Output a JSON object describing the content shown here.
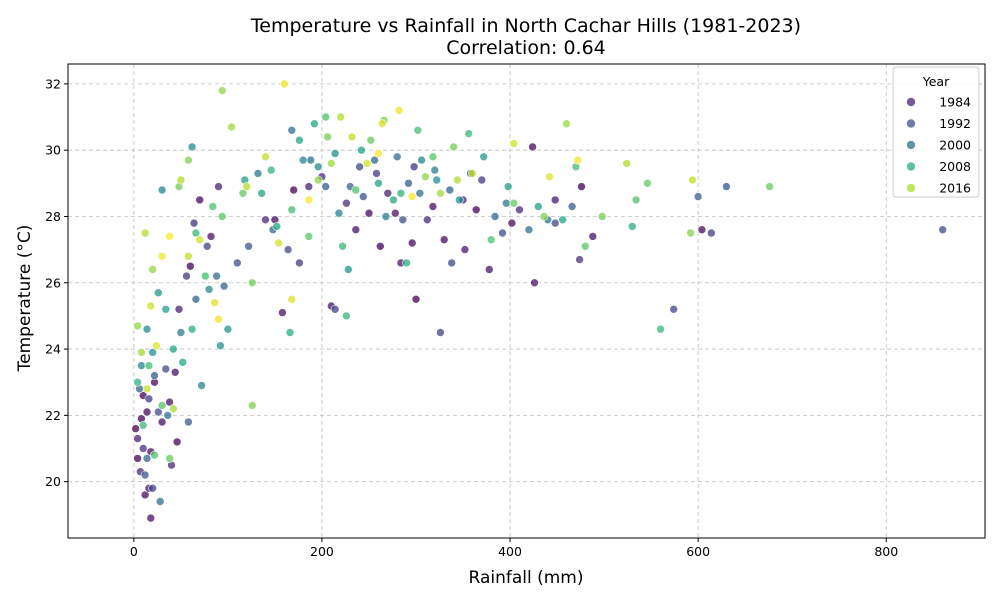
{
  "chart_data": {
    "type": "scatter",
    "title": "Temperature vs Rainfall in North Cachar Hills (1981-2023)",
    "subtitle": "Correlation: 0.64",
    "xlabel": "Rainfall (mm)",
    "ylabel": "Temperature (°C)",
    "xlim": [
      -70,
      905
    ],
    "ylim": [
      18.3,
      32.6
    ],
    "xticks": [
      0,
      200,
      400,
      600,
      800
    ],
    "yticks": [
      20,
      22,
      24,
      26,
      28,
      30,
      32
    ],
    "grid": true,
    "legend": {
      "title": "Year",
      "position": "top-right",
      "entries": [
        {
          "label": "1984",
          "color": "#482475"
        },
        {
          "label": "1992",
          "color": "#3b528b"
        },
        {
          "label": "2000",
          "color": "#2c728e"
        },
        {
          "label": "2008",
          "color": "#27ad81"
        },
        {
          "label": "2016",
          "color": "#aadc32"
        }
      ]
    },
    "color_scale": {
      "years": [
        1981,
        2023
      ],
      "colormap": "viridis"
    },
    "points": [
      [
        2,
        21.6,
        1981
      ],
      [
        4,
        20.7,
        1981
      ],
      [
        8,
        21.9,
        1981
      ],
      [
        10,
        22.6,
        1981
      ],
      [
        14,
        22.1,
        1982
      ],
      [
        18,
        20.9,
        1982
      ],
      [
        22,
        23.0,
        1982
      ],
      [
        30,
        21.8,
        1983
      ],
      [
        38,
        22.4,
        1983
      ],
      [
        44,
        23.3,
        1983
      ],
      [
        60,
        26.5,
        1981
      ],
      [
        70,
        28.5,
        1982
      ],
      [
        82,
        27.4,
        1983
      ],
      [
        150,
        27.9,
        1982
      ],
      [
        170,
        28.8,
        1981
      ],
      [
        210,
        25.3,
        1984
      ],
      [
        236,
        27.6,
        1983
      ],
      [
        250,
        28.1,
        1982
      ],
      [
        262,
        27.1,
        1981
      ],
      [
        278,
        28.1,
        1983
      ],
      [
        284,
        26.6,
        1984
      ],
      [
        296,
        27.2,
        1982
      ],
      [
        300,
        25.5,
        1981
      ],
      [
        318,
        28.3,
        1983
      ],
      [
        330,
        27.3,
        1982
      ],
      [
        352,
        27.0,
        1984
      ],
      [
        364,
        28.2,
        1981
      ],
      [
        378,
        26.4,
        1983
      ],
      [
        402,
        27.8,
        1982
      ],
      [
        424,
        30.1,
        1982
      ],
      [
        426,
        26.0,
        1983
      ],
      [
        448,
        28.5,
        1984
      ],
      [
        476,
        28.9,
        1981
      ],
      [
        488,
        27.4,
        1983
      ],
      [
        604,
        27.6,
        1982
      ],
      [
        12,
        19.6,
        1982
      ],
      [
        18,
        18.9,
        1983
      ],
      [
        16,
        19.8,
        1984
      ],
      [
        46,
        21.2,
        1981
      ],
      [
        158,
        25.1,
        1983
      ],
      [
        4,
        21.3,
        1985
      ],
      [
        7,
        20.3,
        1986
      ],
      [
        10,
        21.0,
        1987
      ],
      [
        16,
        22.5,
        1988
      ],
      [
        20,
        19.8,
        1989
      ],
      [
        26,
        22.1,
        1990
      ],
      [
        34,
        23.4,
        1991
      ],
      [
        40,
        20.5,
        1986
      ],
      [
        48,
        25.2,
        1985
      ],
      [
        56,
        26.2,
        1988
      ],
      [
        64,
        27.8,
        1987
      ],
      [
        78,
        27.1,
        1989
      ],
      [
        90,
        28.9,
        1985
      ],
      [
        110,
        26.6,
        1991
      ],
      [
        140,
        27.9,
        1986
      ],
      [
        164,
        27.0,
        1990
      ],
      [
        176,
        26.6,
        1988
      ],
      [
        186,
        28.9,
        1985
      ],
      [
        200,
        29.2,
        1987
      ],
      [
        214,
        25.2,
        1989
      ],
      [
        226,
        28.4,
        1986
      ],
      [
        240,
        29.5,
        1990
      ],
      [
        258,
        29.3,
        1988
      ],
      [
        270,
        28.7,
        1985
      ],
      [
        286,
        27.9,
        1991
      ],
      [
        298,
        29.5,
        1987
      ],
      [
        312,
        27.9,
        1986
      ],
      [
        326,
        24.5,
        1989
      ],
      [
        338,
        26.6,
        1990
      ],
      [
        350,
        28.5,
        1985
      ],
      [
        370,
        29.1,
        1988
      ],
      [
        392,
        27.5,
        1991
      ],
      [
        410,
        28.2,
        1986
      ],
      [
        448,
        27.8,
        1990
      ],
      [
        474,
        26.7,
        1987
      ],
      [
        574,
        25.2,
        1990
      ],
      [
        614,
        27.5,
        1988
      ],
      [
        860,
        27.6,
        1991
      ],
      [
        12,
        20.2,
        1992
      ],
      [
        22,
        23.2,
        1993
      ],
      [
        6,
        22.8,
        1994
      ],
      [
        14,
        20.7,
        1995
      ],
      [
        28,
        19.4,
        1996
      ],
      [
        36,
        22.0,
        1997
      ],
      [
        50,
        24.5,
        1998
      ],
      [
        58,
        21.8,
        1993
      ],
      [
        66,
        25.5,
        1995
      ],
      [
        88,
        26.2,
        1996
      ],
      [
        96,
        25.9,
        1994
      ],
      [
        122,
        27.1,
        1992
      ],
      [
        132,
        29.3,
        1998
      ],
      [
        148,
        27.6,
        1995
      ],
      [
        168,
        30.6,
        1996
      ],
      [
        188,
        29.7,
        1997
      ],
      [
        204,
        28.9,
        1993
      ],
      [
        218,
        28.1,
        1999
      ],
      [
        230,
        28.9,
        1994
      ],
      [
        244,
        28.6,
        1992
      ],
      [
        256,
        29.7,
        1995
      ],
      [
        268,
        28.0,
        1998
      ],
      [
        280,
        29.8,
        1996
      ],
      [
        292,
        29.0,
        1993
      ],
      [
        304,
        28.7,
        1997
      ],
      [
        320,
        29.4,
        1999
      ],
      [
        336,
        28.8,
        1994
      ],
      [
        358,
        29.3,
        1992
      ],
      [
        384,
        28.0,
        1995
      ],
      [
        396,
        28.4,
        1998
      ],
      [
        420,
        27.6,
        1996
      ],
      [
        440,
        27.9,
        1997
      ],
      [
        466,
        28.3,
        1993
      ],
      [
        600,
        28.6,
        1994
      ],
      [
        630,
        28.9,
        1992
      ],
      [
        8,
        23.5,
        2000
      ],
      [
        14,
        24.6,
        2001
      ],
      [
        20,
        23.9,
        2002
      ],
      [
        26,
        25.7,
        2003
      ],
      [
        34,
        25.2,
        2004
      ],
      [
        42,
        24.0,
        2005
      ],
      [
        52,
        23.6,
        2006
      ],
      [
        62,
        24.6,
        2007
      ],
      [
        72,
        22.9,
        2000
      ],
      [
        80,
        25.8,
        2001
      ],
      [
        92,
        24.1,
        2002
      ],
      [
        100,
        24.6,
        2003
      ],
      [
        118,
        29.1,
        2004
      ],
      [
        136,
        28.7,
        2005
      ],
      [
        152,
        27.7,
        2006
      ],
      [
        166,
        24.5,
        2007
      ],
      [
        180,
        29.7,
        2000
      ],
      [
        196,
        29.5,
        2001
      ],
      [
        214,
        29.9,
        2002
      ],
      [
        228,
        26.4,
        2003
      ],
      [
        242,
        30.0,
        2004
      ],
      [
        260,
        29.0,
        2005
      ],
      [
        276,
        28.5,
        2006
      ],
      [
        290,
        26.6,
        2007
      ],
      [
        306,
        29.7,
        2000
      ],
      [
        322,
        29.1,
        2001
      ],
      [
        346,
        28.5,
        2002
      ],
      [
        372,
        29.8,
        2003
      ],
      [
        398,
        28.9,
        2004
      ],
      [
        430,
        28.3,
        2005
      ],
      [
        456,
        27.9,
        2006
      ],
      [
        530,
        27.7,
        2007
      ],
      [
        30,
        28.8,
        2000
      ],
      [
        62,
        30.1,
        2001
      ],
      [
        176,
        30.3,
        2005
      ],
      [
        192,
        30.8,
        2006
      ],
      [
        4,
        23.0,
        2008
      ],
      [
        10,
        21.7,
        2009
      ],
      [
        16,
        23.5,
        2010
      ],
      [
        22,
        20.8,
        2011
      ],
      [
        30,
        22.3,
        2012
      ],
      [
        38,
        20.7,
        2013
      ],
      [
        48,
        28.9,
        2014
      ],
      [
        58,
        29.7,
        2015
      ],
      [
        66,
        27.5,
        2009
      ],
      [
        76,
        26.2,
        2010
      ],
      [
        84,
        28.3,
        2011
      ],
      [
        94,
        28.0,
        2012
      ],
      [
        116,
        28.7,
        2013
      ],
      [
        126,
        26.0,
        2014
      ],
      [
        126,
        22.3,
        2015
      ],
      [
        146,
        29.4,
        2008
      ],
      [
        168,
        28.2,
        2010
      ],
      [
        186,
        27.4,
        2012
      ],
      [
        206,
        30.4,
        2014
      ],
      [
        222,
        27.1,
        2009
      ],
      [
        236,
        28.8,
        2011
      ],
      [
        252,
        30.3,
        2013
      ],
      [
        266,
        30.9,
        2015
      ],
      [
        284,
        28.7,
        2008
      ],
      [
        302,
        30.6,
        2010
      ],
      [
        318,
        29.8,
        2012
      ],
      [
        340,
        30.1,
        2014
      ],
      [
        356,
        30.5,
        2009
      ],
      [
        380,
        27.3,
        2011
      ],
      [
        404,
        28.4,
        2013
      ],
      [
        436,
        28.0,
        2015
      ],
      [
        470,
        29.5,
        2010
      ],
      [
        480,
        27.1,
        2012
      ],
      [
        498,
        28.0,
        2014
      ],
      [
        534,
        28.5,
        2011
      ],
      [
        546,
        29.0,
        2013
      ],
      [
        560,
        24.6,
        2009
      ],
      [
        592,
        27.5,
        2015
      ],
      [
        676,
        28.9,
        2013
      ],
      [
        226,
        25.0,
        2009
      ],
      [
        204,
        31.0,
        2011
      ],
      [
        4,
        24.7,
        2016
      ],
      [
        8,
        23.9,
        2017
      ],
      [
        12,
        27.5,
        2018
      ],
      [
        14,
        22.8,
        2019
      ],
      [
        18,
        25.3,
        2020
      ],
      [
        24,
        24.1,
        2021
      ],
      [
        30,
        26.8,
        2022
      ],
      [
        38,
        27.4,
        2023
      ],
      [
        42,
        22.2,
        2017
      ],
      [
        50,
        29.1,
        2018
      ],
      [
        58,
        26.8,
        2019
      ],
      [
        70,
        27.3,
        2020
      ],
      [
        86,
        25.4,
        2021
      ],
      [
        94,
        31.8,
        2016
      ],
      [
        104,
        30.7,
        2017
      ],
      [
        120,
        28.9,
        2018
      ],
      [
        140,
        29.8,
        2019
      ],
      [
        154,
        27.2,
        2020
      ],
      [
        160,
        32.0,
        2022
      ],
      [
        168,
        25.5,
        2021
      ],
      [
        186,
        28.5,
        2023
      ],
      [
        196,
        29.1,
        2016
      ],
      [
        210,
        29.6,
        2017
      ],
      [
        220,
        31.0,
        2018
      ],
      [
        232,
        30.4,
        2019
      ],
      [
        248,
        29.6,
        2020
      ],
      [
        264,
        30.8,
        2021
      ],
      [
        282,
        31.2,
        2022
      ],
      [
        296,
        28.6,
        2023
      ],
      [
        310,
        29.2,
        2016
      ],
      [
        326,
        28.7,
        2017
      ],
      [
        344,
        29.1,
        2018
      ],
      [
        360,
        29.3,
        2019
      ],
      [
        404,
        30.2,
        2020
      ],
      [
        442,
        29.2,
        2021
      ],
      [
        472,
        29.7,
        2022
      ],
      [
        524,
        29.6,
        2018
      ],
      [
        594,
        29.1,
        2019
      ],
      [
        460,
        30.8,
        2017
      ],
      [
        20,
        26.4,
        2016
      ],
      [
        260,
        29.9,
        2023
      ],
      [
        90,
        24.9,
        2022
      ]
    ]
  }
}
